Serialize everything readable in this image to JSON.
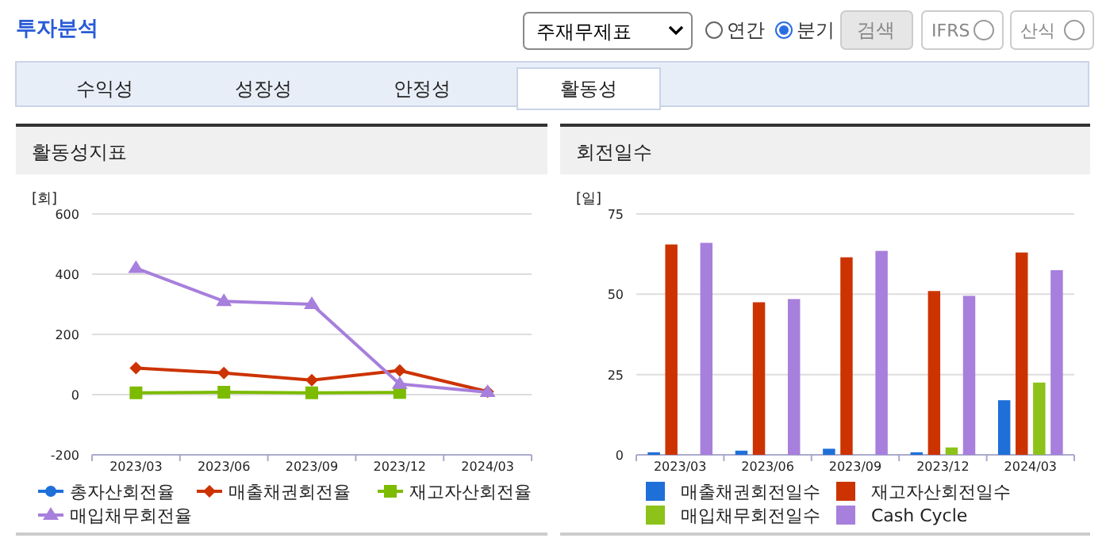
{
  "chart_data": [
    {
      "type": "other",
      "annotations": [
        "투자분석",
        "주재무제표",
        "연간",
        "분기",
        "검색",
        "IFRS",
        "산식",
        "수익성",
        "성장성",
        "안정성",
        "활동성"
      ]
    },
    {
      "type": "line",
      "title": "활동성지표",
      "ylabel": "[회]",
      "categories": [
        "2023/03",
        "2023/06",
        "2023/09",
        "2023/12",
        "2024/03"
      ],
      "ylim": [
        -200,
        600
      ],
      "yticks": [
        -200,
        0,
        200,
        400,
        600
      ],
      "grid": "y",
      "legend": "bottom",
      "series": [
        {
          "name": "총자산회전율",
          "color": "#1f6fd9",
          "marker": "circle",
          "values": [
            null,
            null,
            null,
            null,
            null
          ]
        },
        {
          "name": "매출채권회전율",
          "color": "#cc3300",
          "marker": "diamond",
          "values": [
            88,
            72,
            48,
            80,
            10
          ]
        },
        {
          "name": "재고자산회전율",
          "color": "#7cbb00",
          "marker": "square",
          "values": [
            6,
            8,
            6,
            7,
            null
          ]
        },
        {
          "name": "매입채무회전율",
          "color": "#a77fdc",
          "marker": "triangle",
          "values": [
            420,
            310,
            300,
            35,
            8
          ]
        }
      ]
    },
    {
      "type": "bar",
      "title": "회전일수",
      "ylabel": "[일]",
      "categories": [
        "2023/03",
        "2023/06",
        "2023/09",
        "2023/12",
        "2024/03"
      ],
      "ylim": [
        0,
        75
      ],
      "yticks": [
        0,
        25,
        50,
        75
      ],
      "grid": "y",
      "legend": "bottom",
      "series": [
        {
          "name": "매출채권회전일수",
          "color": "#1f6fd9",
          "values": [
            0.8,
            1.3,
            1.9,
            0.8,
            17
          ]
        },
        {
          "name": "재고자산회전일수",
          "color": "#cc3300",
          "values": [
            65.5,
            47.5,
            61.5,
            51,
            63
          ]
        },
        {
          "name": "매입채무회전일수",
          "color": "#8cc21a",
          "values": [
            0,
            0,
            0,
            2.3,
            22.5
          ]
        },
        {
          "name": "Cash Cycle",
          "color": "#a77fdc",
          "values": [
            66,
            48.5,
            63.5,
            49.5,
            57.5
          ]
        }
      ]
    }
  ]
}
